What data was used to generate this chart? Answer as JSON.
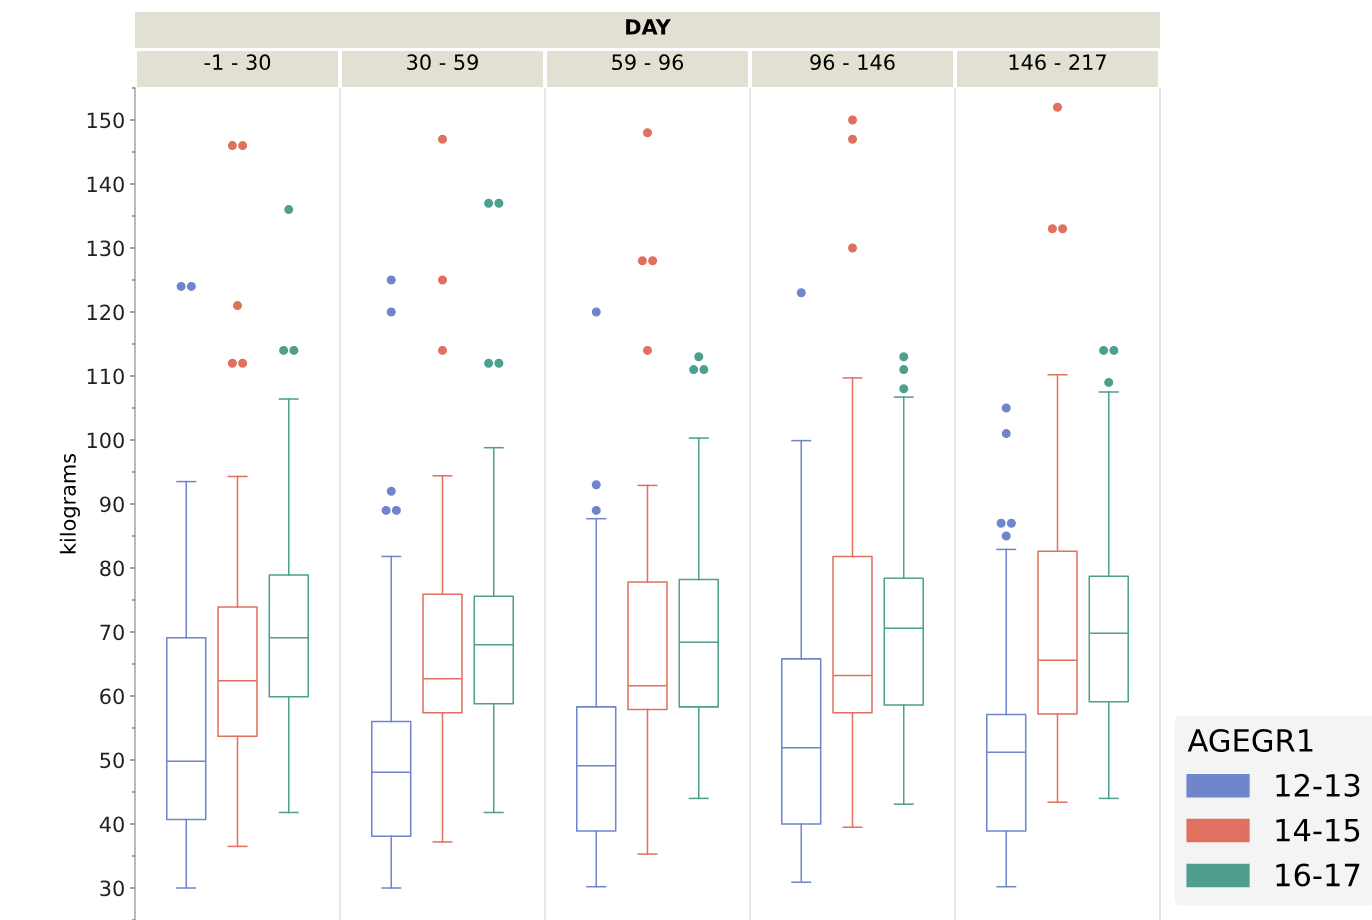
{
  "chart_data": {
    "type": "box",
    "xlabel": "DAY",
    "ylabel": "kilograms",
    "categories": [
      "-1 - 30",
      "30 - 59",
      "59 - 96",
      "96 - 146",
      "146 - 217"
    ],
    "ylim": [
      25,
      155
    ],
    "yticks": [
      30,
      40,
      50,
      60,
      70,
      80,
      90,
      100,
      110,
      120,
      130,
      140,
      150
    ],
    "grid": "x",
    "legend": "right",
    "legend_title": "AGEGR1",
    "series": [
      {
        "name": "12-13",
        "color": "#6f86cc",
        "boxes": [
          {
            "low": 30,
            "q1": 40.7,
            "median": 49.8,
            "q3": 69.1,
            "high": 93.5,
            "outliers": [
              124,
              124
            ]
          },
          {
            "low": 30,
            "q1": 38.1,
            "median": 48.1,
            "q3": 56,
            "high": 81.8,
            "outliers": [
              125,
              120,
              92,
              89,
              89
            ]
          },
          {
            "low": 30.2,
            "q1": 38.9,
            "median": 49.1,
            "q3": 58.3,
            "high": 87.7,
            "outliers": [
              120,
              93,
              89
            ]
          },
          {
            "low": 30.9,
            "q1": 40,
            "median": 51.9,
            "q3": 65.8,
            "high": 99.9,
            "outliers": [
              123
            ]
          },
          {
            "low": 30.2,
            "q1": 38.9,
            "median": 51.2,
            "q3": 57.1,
            "high": 82.9,
            "outliers": [
              105,
              101,
              87,
              87,
              85
            ]
          }
        ]
      },
      {
        "name": "14-15",
        "color": "#e0705f",
        "boxes": [
          {
            "low": 36.5,
            "q1": 53.7,
            "median": 62.4,
            "q3": 73.9,
            "high": 94.3,
            "outliers": [
              146,
              146,
              121,
              112,
              112
            ]
          },
          {
            "low": 37.2,
            "q1": 57.4,
            "median": 62.7,
            "q3": 75.9,
            "high": 94.4,
            "outliers": [
              147,
              125,
              114
            ]
          },
          {
            "low": 35.3,
            "q1": 57.9,
            "median": 61.6,
            "q3": 77.8,
            "high": 92.9,
            "outliers": [
              148,
              128,
              128,
              114
            ]
          },
          {
            "low": 39.5,
            "q1": 57.4,
            "median": 63.2,
            "q3": 81.8,
            "high": 109.7,
            "outliers": [
              150,
              147,
              130
            ]
          },
          {
            "low": 43.4,
            "q1": 57.2,
            "median": 65.6,
            "q3": 82.6,
            "high": 110.2,
            "outliers": [
              152,
              133,
              133
            ]
          }
        ]
      },
      {
        "name": "16-17",
        "color": "#4e9f8e",
        "boxes": [
          {
            "low": 41.8,
            "q1": 59.9,
            "median": 69.1,
            "q3": 78.9,
            "high": 106.4,
            "outliers": [
              136,
              114,
              114
            ]
          },
          {
            "low": 41.8,
            "q1": 58.8,
            "median": 68,
            "q3": 75.6,
            "high": 98.8,
            "outliers": [
              137,
              137,
              112,
              112
            ]
          },
          {
            "low": 44,
            "q1": 58.3,
            "median": 68.4,
            "q3": 78.2,
            "high": 100.3,
            "outliers": [
              113,
              111,
              111
            ]
          },
          {
            "low": 43.1,
            "q1": 58.6,
            "median": 70.6,
            "q3": 78.4,
            "high": 106.7,
            "outliers": [
              113,
              111,
              108
            ]
          },
          {
            "low": 44,
            "q1": 59.1,
            "median": 69.8,
            "q3": 78.7,
            "high": 107.5,
            "outliers": [
              114,
              114,
              109
            ]
          }
        ]
      }
    ]
  }
}
